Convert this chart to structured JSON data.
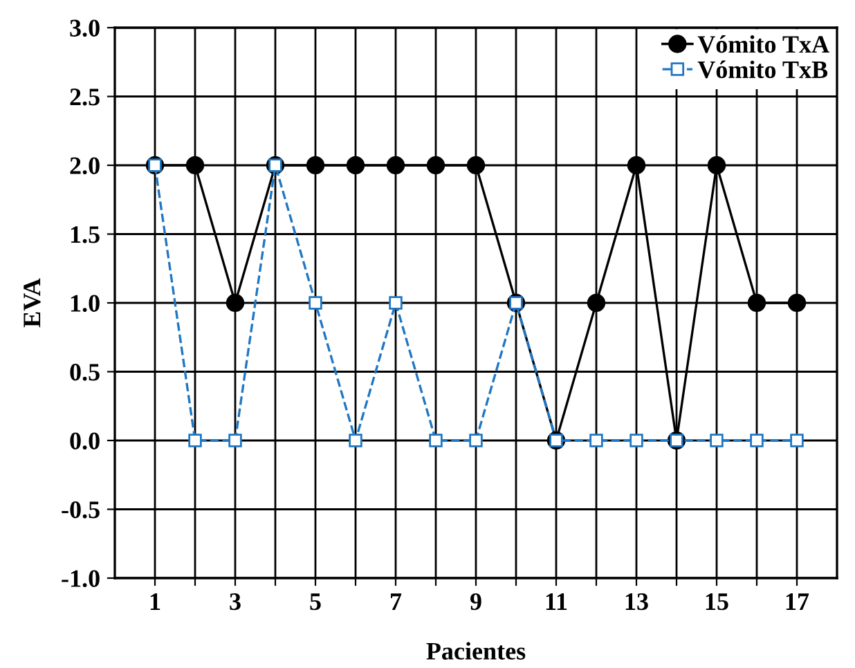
{
  "chart_data": {
    "type": "line",
    "xlabel": "Pacientes",
    "ylabel": "EVA",
    "x": [
      1,
      2,
      3,
      4,
      5,
      6,
      7,
      8,
      9,
      10,
      11,
      12,
      13,
      14,
      15,
      16,
      17
    ],
    "series": [
      {
        "name": "Vómito TxA",
        "color": "#000000",
        "marker": "circle",
        "line_style": "solid",
        "values": [
          2,
          2,
          1,
          2,
          2,
          2,
          2,
          2,
          2,
          1,
          0,
          1,
          2,
          0,
          2,
          1,
          1
        ]
      },
      {
        "name": "Vómito TxB",
        "color": "#1f77c4",
        "marker": "square",
        "line_style": "dashed",
        "values": [
          2,
          0,
          0,
          2,
          1,
          0,
          1,
          0,
          0,
          1,
          0,
          0,
          0,
          0,
          0,
          0,
          0
        ]
      }
    ],
    "xlim": [
      0,
      18
    ],
    "xticks": [
      1,
      {
        "value": 2,
        "label": null
      },
      3,
      {
        "value": 4,
        "label": null
      },
      5,
      {
        "value": 6,
        "label": null
      },
      7,
      {
        "value": 8,
        "label": null
      },
      9,
      {
        "value": 10,
        "label": null
      },
      11,
      {
        "value": 12,
        "label": null
      },
      13,
      {
        "value": 14,
        "label": null
      },
      15,
      {
        "value": 16,
        "label": null
      },
      17
    ],
    "ylim": [
      -1,
      3
    ],
    "yticks": [
      {
        "value": -1,
        "label": "-1.0"
      },
      {
        "value": -0.5,
        "label": "-0.5"
      },
      {
        "value": 0,
        "label": "0.0"
      },
      {
        "value": 0.5,
        "label": "0.5"
      },
      {
        "value": 1,
        "label": "1.0"
      },
      {
        "value": 1.5,
        "label": "1.5"
      },
      {
        "value": 2,
        "label": "2.0"
      },
      {
        "value": 2.5,
        "label": "2.5"
      },
      {
        "value": 3,
        "label": "3.0"
      }
    ],
    "grid": true,
    "legend": "top right"
  }
}
